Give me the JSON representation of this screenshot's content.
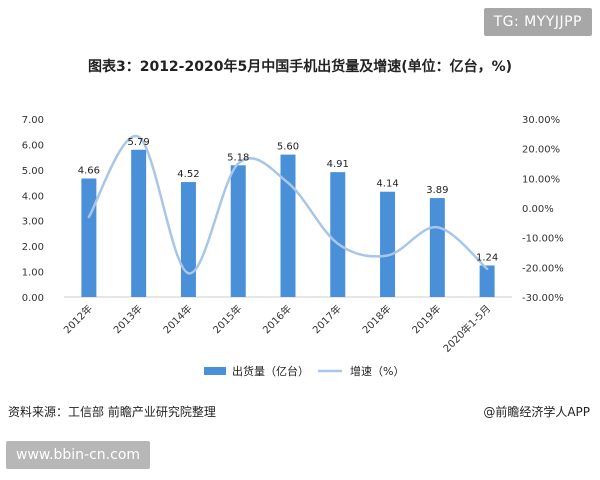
{
  "badge": "TG: MYYJJPP",
  "footer": {
    "source": "资料来源：工信部 前瞻产业研究院整理",
    "credit": "@前瞻经济学人APP"
  },
  "watermark_url": "www.bbin-cn.com",
  "colors": {
    "bar": "#4a90d9",
    "line": "#a7c6e8",
    "axis": "#cccccc"
  },
  "chart_data": {
    "type": "bar",
    "title": "图表3：2012-2020年5月中国手机出货量及增速(单位：亿台，%)",
    "categories": [
      "2012年",
      "2013年",
      "2014年",
      "2015年",
      "2016年",
      "2017年",
      "2018年",
      "2019年",
      "2020年1-5月"
    ],
    "series": [
      {
        "name": "出货量（亿台）",
        "type": "bar",
        "axis": "left",
        "values": [
          4.66,
          5.79,
          4.52,
          5.18,
          5.6,
          4.91,
          4.14,
          3.89,
          1.24
        ],
        "labels": [
          "4.66",
          "5.79",
          "4.52",
          "5.18",
          "5.60",
          "4.91",
          "4.14",
          "3.89",
          "1.24"
        ]
      },
      {
        "name": "增速（%）",
        "type": "line",
        "axis": "right",
        "values": [
          -3.0,
          24.0,
          -22.0,
          15.0,
          8.5,
          -12.0,
          -16.0,
          -6.5,
          -20.5
        ]
      }
    ],
    "y_left": {
      "min": 0,
      "max": 7,
      "ticks": [
        "0.00",
        "1.00",
        "2.00",
        "3.00",
        "4.00",
        "5.00",
        "6.00",
        "7.00"
      ]
    },
    "y_right": {
      "min": -30,
      "max": 30,
      "ticks": [
        "-30.00%",
        "-20.00%",
        "-10.00%",
        "0.00%",
        "10.00%",
        "20.00%",
        "30.00%"
      ]
    },
    "legend_position": "bottom",
    "grid": false
  }
}
